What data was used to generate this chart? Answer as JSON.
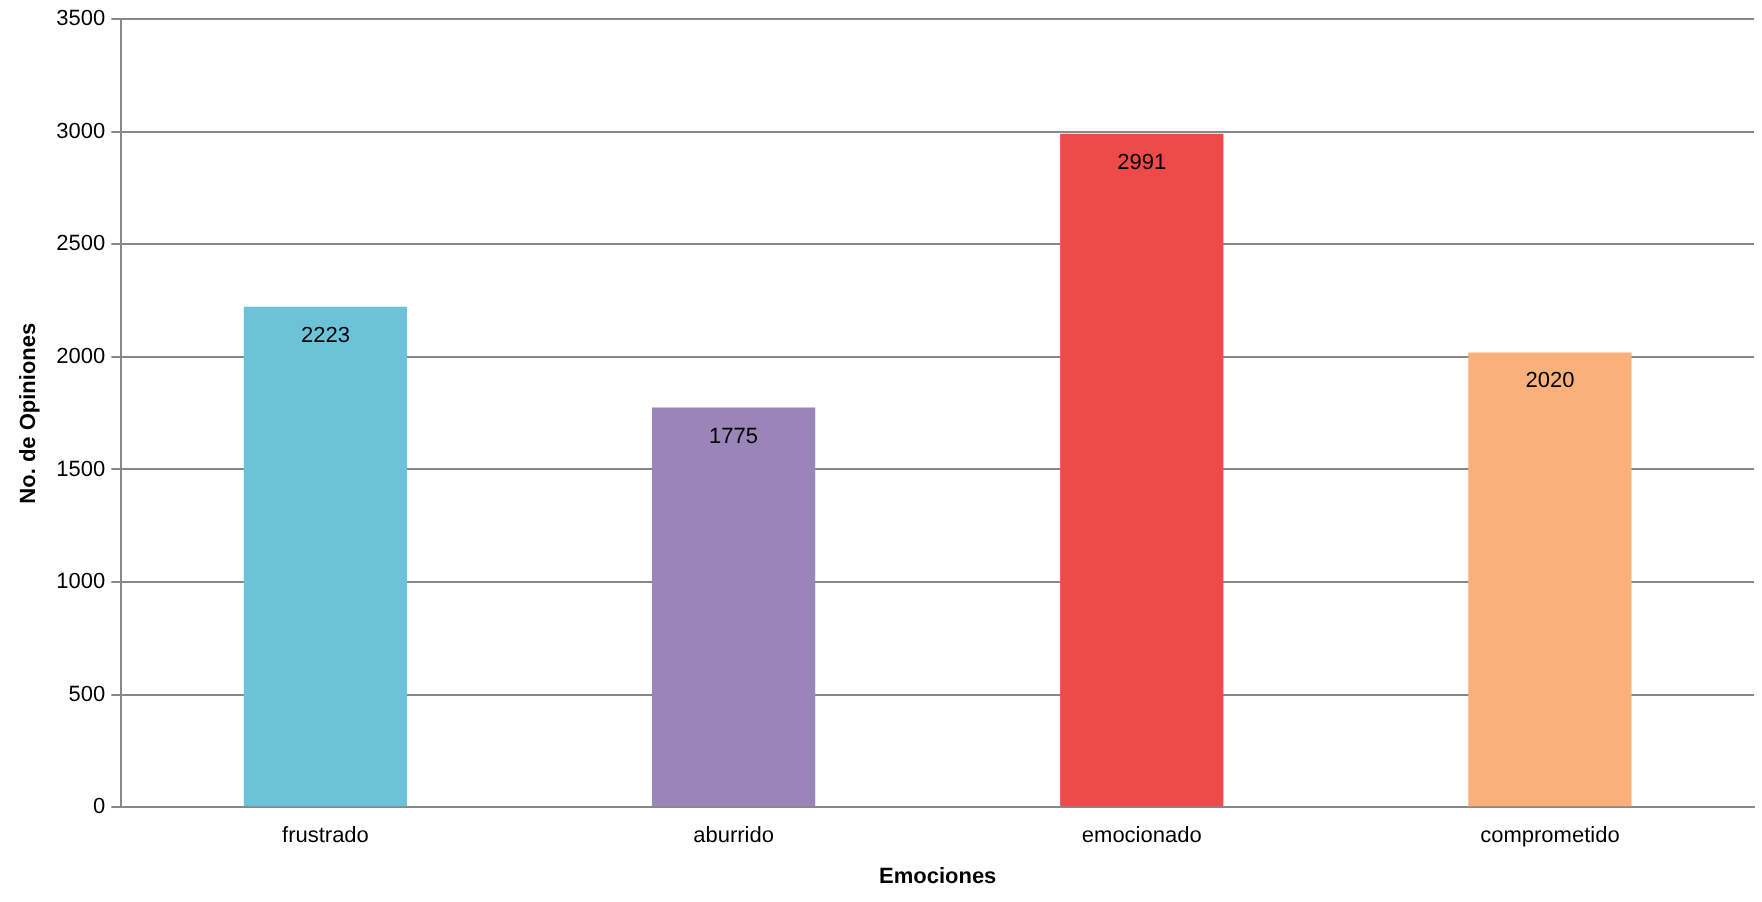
{
  "chart_data": {
    "type": "bar",
    "xlabel": "Emociones",
    "ylabel": "No. de Opiniones",
    "categories": [
      "frustrado",
      "aburrido",
      "emocionado",
      "comprometido"
    ],
    "values": [
      2223,
      1775,
      2991,
      2020
    ],
    "colors": [
      "#6cc3d8",
      "#9a85b8",
      "#ef4a4a",
      "#f9b07a"
    ],
    "ylim": [
      0,
      3500
    ],
    "yticks": [
      0,
      500,
      1000,
      1500,
      2000,
      2500,
      3000,
      3500
    ],
    "grid": "y",
    "data_labels": true
  }
}
